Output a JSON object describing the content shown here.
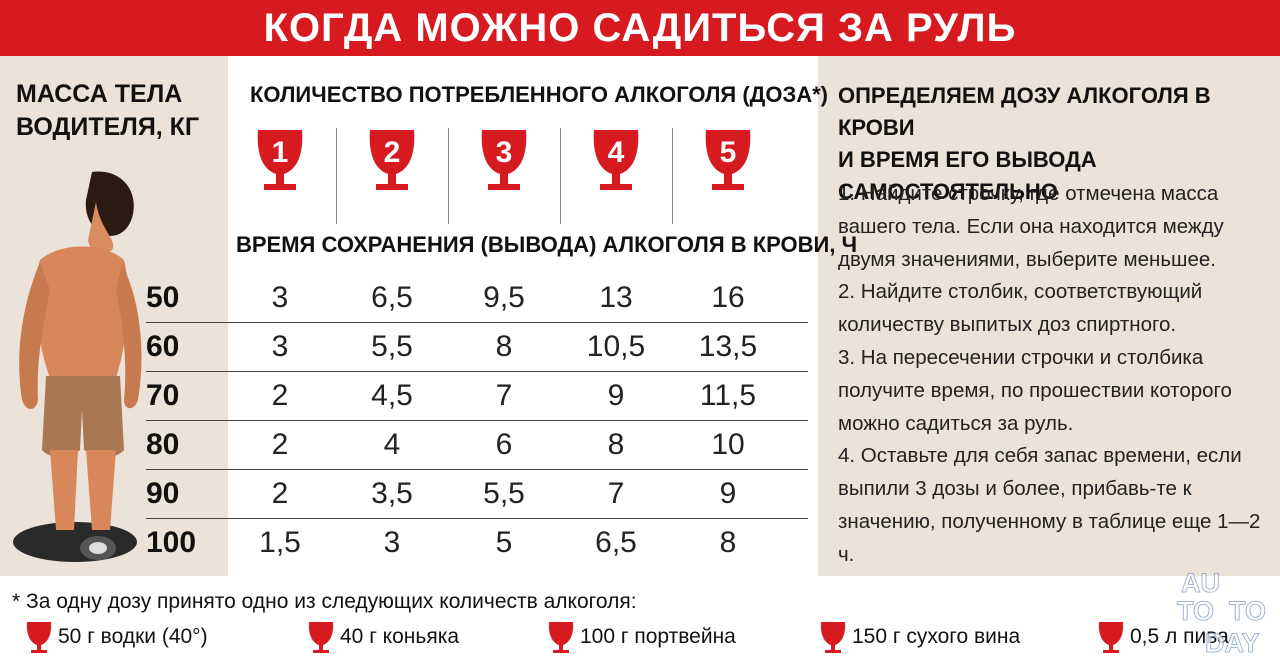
{
  "title": "КОГДА МОЖНО САДИТЬСЯ ЗА РУЛЬ",
  "mass_header_lines": [
    "МАССА ТЕЛА",
    "ВОДИТЕЛЯ, КГ"
  ],
  "dose_header": "КОЛИЧЕСТВО ПОТРЕБЛЕННОГО АЛКОГОЛЯ (ДОЗА*)",
  "time_header": "ВРЕМЯ СОХРАНЕНИЯ (ВЫВОДА) АЛКОГОЛЯ В КРОВИ, Ч",
  "doses": [
    "1",
    "2",
    "3",
    "4",
    "5"
  ],
  "rows": [
    {
      "mass": "50",
      "values": [
        "3",
        "6,5",
        "9,5",
        "13",
        "16"
      ]
    },
    {
      "mass": "60",
      "values": [
        "3",
        "5,5",
        "8",
        "10,5",
        "13,5"
      ]
    },
    {
      "mass": "70",
      "values": [
        "2",
        "4,5",
        "7",
        "9",
        "11,5"
      ]
    },
    {
      "mass": "80",
      "values": [
        "2",
        "4",
        "6",
        "8",
        "10"
      ]
    },
    {
      "mass": "90",
      "values": [
        "2",
        "3,5",
        "5,5",
        "7",
        "9"
      ]
    },
    {
      "mass": "100",
      "values": [
        "1,5",
        "3",
        "5",
        "6,5",
        "8"
      ]
    }
  ],
  "right_title_lines": [
    "ОПРЕДЕЛЯЕМ ДОЗУ АЛКОГОЛЯ В КРОВИ",
    "И ВРЕМЯ ЕГО ВЫВОДА САМОСТОЯТЕЛЬНО"
  ],
  "steps": [
    "1. Найдите строчку, где отмечена масса вашего тела. Если она находится между двумя значениями, выберите меньшее.",
    "2. Найдите столбик, соответствующий количеству выпитых доз спиртного.",
    "3. На пересечении строчки и столбика получите время, по прошествии которого можно садиться за руль.",
    "4. Оставьте для себя запас времени, если выпили 3 дозы и более, прибавь-те к значению, полученному в таблице еще 1—2 ч."
  ],
  "footnote": "* За одну дозу принято одно из следующих количеств алкоголя:",
  "equivalents": [
    "50 г водки (40°)",
    "40 г коньяка",
    "100 г портвейна",
    "150 г сухого вина",
    "0,5 л пива"
  ],
  "watermark": [
    "AU",
    "TO",
    "TO",
    "DAY"
  ],
  "colors": {
    "accent": "#d71a20",
    "panel": "#ebe2d9"
  }
}
